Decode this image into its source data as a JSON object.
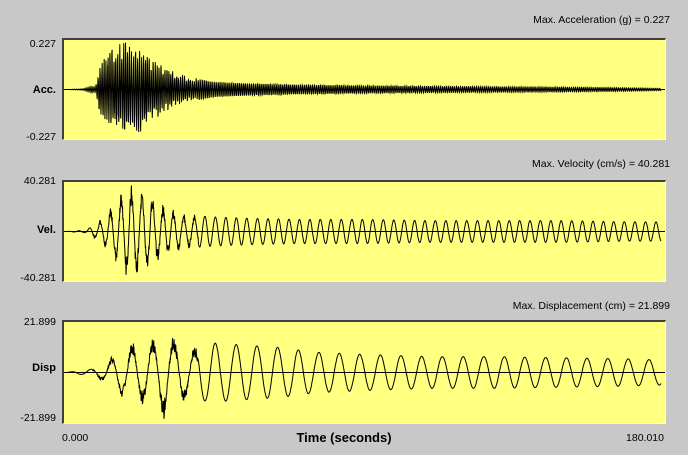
{
  "chart_data": [
    {
      "type": "line",
      "title": "Max. Acceleration (g) = 0.227",
      "ylabel": "Acc.",
      "ymax_label": "0.227",
      "ymin_label": "-0.227",
      "ylim": [
        -0.227,
        0.227
      ],
      "xlim": [
        0.0,
        180.01
      ],
      "series": [
        {
          "envelope": [
            [
              0,
              0.0
            ],
            [
              5,
              0.003
            ],
            [
              9,
              0.02
            ],
            [
              10,
              0.11
            ],
            [
              12,
              0.17
            ],
            [
              14,
              0.2
            ],
            [
              16,
              0.22
            ],
            [
              18,
              0.227
            ],
            [
              20,
              0.19
            ],
            [
              22,
              0.21
            ],
            [
              24,
              0.19
            ],
            [
              26,
              0.16
            ],
            [
              28,
              0.13
            ],
            [
              31,
              0.1
            ],
            [
              35,
              0.07
            ],
            [
              40,
              0.05
            ],
            [
              45,
              0.035
            ],
            [
              55,
              0.028
            ],
            [
              70,
              0.022
            ],
            [
              90,
              0.018
            ],
            [
              110,
              0.015
            ],
            [
              130,
              0.013
            ],
            [
              150,
              0.011
            ],
            [
              170,
              0.008
            ],
            [
              180,
              0.005
            ]
          ],
          "period": 0.6
        }
      ]
    },
    {
      "type": "line",
      "title": "Max. Velocity (cm/s) = 40.281",
      "ylabel": "Vel.",
      "ymax_label": "40.281",
      "ymin_label": "-40.281",
      "ylim": [
        -40.281,
        40.281
      ],
      "xlim": [
        0.0,
        180.01
      ],
      "series": [
        {
          "envelope": [
            [
              0,
              0.0
            ],
            [
              6,
              1.0
            ],
            [
              10,
              8
            ],
            [
              12,
              14
            ],
            [
              14,
              22
            ],
            [
              16,
              30
            ],
            [
              18,
              38
            ],
            [
              20,
              40.281
            ],
            [
              22,
              36
            ],
            [
              24,
              34
            ],
            [
              26,
              30
            ],
            [
              28,
              26
            ],
            [
              30,
              22
            ],
            [
              35,
              16
            ],
            [
              40,
              13
            ],
            [
              45,
              12
            ],
            [
              55,
              11
            ],
            [
              70,
              10
            ],
            [
              90,
              10
            ],
            [
              110,
              9
            ],
            [
              130,
              9
            ],
            [
              150,
              9
            ],
            [
              170,
              8
            ],
            [
              180,
              8
            ]
          ],
          "period": 3.2
        }
      ]
    },
    {
      "type": "line",
      "title": "Max. Displacement (cm) = 21.899",
      "ylabel": "Disp",
      "ymax_label": "21.899",
      "ymin_label": "-21.899",
      "ylim": [
        -21.899,
        21.899
      ],
      "xlim": [
        0.0,
        180.01
      ],
      "series": [
        {
          "envelope": [
            [
              0,
              0.0
            ],
            [
              8,
              1.5
            ],
            [
              12,
              5
            ],
            [
              16,
              10
            ],
            [
              20,
              14
            ],
            [
              24,
              15
            ],
            [
              28,
              17
            ],
            [
              30,
              21.899
            ],
            [
              33,
              15
            ],
            [
              38,
              12
            ],
            [
              45,
              13
            ],
            [
              55,
              12
            ],
            [
              65,
              11
            ],
            [
              75,
              9
            ],
            [
              90,
              8
            ],
            [
              110,
              7
            ],
            [
              130,
              7
            ],
            [
              150,
              6.5
            ],
            [
              170,
              6
            ],
            [
              180,
              5.5
            ]
          ],
          "period": 6.3
        }
      ]
    }
  ],
  "xaxis": {
    "min_label": "0.000",
    "max_label": "180.010",
    "label": "Time (seconds)"
  },
  "colors": {
    "plot_bg": "#ffff80",
    "trace": "#000000",
    "window_bg": "#c8c8c8"
  }
}
